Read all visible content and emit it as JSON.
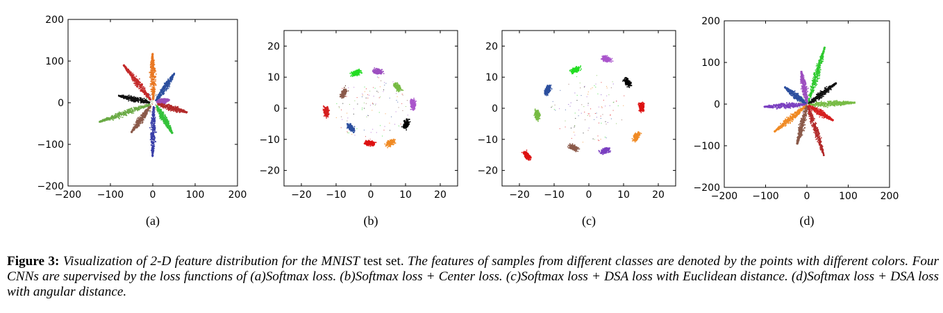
{
  "palette": [
    "#d62728",
    "#2ca02c",
    "#1f77b4",
    "#ff7f0e",
    "#9467bd",
    "#8c564b",
    "#e377c2",
    "#7f7f7f",
    "#bcbd22",
    "#000000",
    "#17becf"
  ],
  "chart_data": [
    {
      "type": "scatter",
      "panel_label": "(a)",
      "grid": false,
      "xlim": [
        -200,
        200
      ],
      "ylim": [
        -200,
        200
      ],
      "xticks": [
        "−200",
        "−100",
        "0",
        "100",
        "200"
      ],
      "yticks": [
        "200",
        "100",
        "0",
        "−100",
        "−200"
      ],
      "xtick_values": [
        -200,
        -100,
        0,
        100,
        200
      ],
      "ytick_values": [
        200,
        100,
        0,
        -100,
        -200
      ],
      "series": [
        {
          "color": "#e87722",
          "shape": "ray",
          "start": [
            0,
            8
          ],
          "end": [
            -2,
            120
          ]
        },
        {
          "color": "#2c4f9e",
          "shape": "ray",
          "start": [
            6,
            6
          ],
          "end": [
            50,
            72
          ]
        },
        {
          "color": "#9c4fb8",
          "shape": "ray",
          "start": [
            8,
            3
          ],
          "end": [
            38,
            8
          ]
        },
        {
          "color": "#b22a2a",
          "shape": "ray",
          "start": [
            10,
            -2
          ],
          "end": [
            80,
            -22
          ]
        },
        {
          "color": "#34c23a",
          "shape": "ray",
          "start": [
            8,
            -6
          ],
          "end": [
            45,
            -72
          ]
        },
        {
          "color": "#3a3fa8",
          "shape": "ray",
          "start": [
            1,
            -8
          ],
          "end": [
            -2,
            -128
          ]
        },
        {
          "color": "#8b5a4a",
          "shape": "ray",
          "start": [
            -6,
            -6
          ],
          "end": [
            -52,
            -70
          ]
        },
        {
          "color": "#6aaa45",
          "shape": "ray",
          "start": [
            -8,
            -3
          ],
          "end": [
            -128,
            -45
          ]
        },
        {
          "color": "#111111",
          "shape": "ray",
          "start": [
            -8,
            2
          ],
          "end": [
            -82,
            18
          ]
        },
        {
          "color": "#c42a2a",
          "shape": "ray",
          "start": [
            -5,
            7
          ],
          "end": [
            -70,
            92
          ]
        }
      ]
    },
    {
      "type": "scatter",
      "panel_label": "(b)",
      "grid": false,
      "xlim": [
        -25,
        25
      ],
      "ylim": [
        -25,
        25
      ],
      "xticks": [
        "−20",
        "−10",
        "0",
        "10",
        "20"
      ],
      "yticks": [
        "20",
        "10",
        "0",
        "−10",
        "−20"
      ],
      "xtick_values": [
        -20,
        -10,
        0,
        10,
        20
      ],
      "ytick_values": [
        20,
        10,
        0,
        -10,
        -20
      ],
      "series": [
        {
          "color": "#22dd22",
          "shape": "blob",
          "center": [
            -4.5,
            11.5
          ]
        },
        {
          "color": "#9d4fc0",
          "shape": "blob",
          "center": [
            2,
            12
          ]
        },
        {
          "color": "#8b5a4a",
          "shape": "blob",
          "center": [
            -8,
            5
          ]
        },
        {
          "color": "#77bb44",
          "shape": "blob",
          "center": [
            7.5,
            7
          ]
        },
        {
          "color": "#d62020",
          "shape": "blob",
          "center": [
            -13,
            -1
          ]
        },
        {
          "color": "#aa55cc",
          "shape": "blob",
          "center": [
            12,
            1.5
          ]
        },
        {
          "color": "#2c4f9e",
          "shape": "blob",
          "center": [
            -6,
            -6
          ]
        },
        {
          "color": "#000000",
          "shape": "blob",
          "center": [
            10,
            -5
          ]
        },
        {
          "color": "#dd1111",
          "shape": "blob",
          "center": [
            -0.5,
            -11
          ]
        },
        {
          "color": "#f08a24",
          "shape": "blob",
          "center": [
            5.5,
            -11
          ]
        }
      ]
    },
    {
      "type": "scatter",
      "panel_label": "(c)",
      "grid": false,
      "xlim": [
        -25,
        25
      ],
      "ylim": [
        -25,
        25
      ],
      "xticks": [
        "−20",
        "−10",
        "0",
        "10",
        "20"
      ],
      "yticks": [
        "20",
        "10",
        "0",
        "−10",
        "−20"
      ],
      "xtick_values": [
        -20,
        -10,
        0,
        10,
        20
      ],
      "ytick_values": [
        20,
        10,
        0,
        -10,
        -20
      ],
      "series": [
        {
          "color": "#22dd22",
          "shape": "blob",
          "center": [
            -4,
            12.5
          ]
        },
        {
          "color": "#aa55cc",
          "shape": "blob",
          "center": [
            5,
            16
          ]
        },
        {
          "color": "#000000",
          "shape": "blob",
          "center": [
            11,
            8.5
          ]
        },
        {
          "color": "#2c4f9e",
          "shape": "blob",
          "center": [
            -12,
            6
          ]
        },
        {
          "color": "#dd1111",
          "shape": "blob",
          "center": [
            15,
            0.5
          ]
        },
        {
          "color": "#77bb44",
          "shape": "blob",
          "center": [
            -15,
            -2
          ]
        },
        {
          "color": "#f08a24",
          "shape": "blob",
          "center": [
            13.5,
            -9
          ]
        },
        {
          "color": "#8b5a4a",
          "shape": "blob",
          "center": [
            -4.5,
            -12.5
          ]
        },
        {
          "color": "#7a3fc0",
          "shape": "blob",
          "center": [
            4.5,
            -13.5
          ]
        },
        {
          "color": "#dd1111",
          "shape": "blob",
          "center": [
            -18,
            -15
          ]
        }
      ]
    },
    {
      "type": "scatter",
      "panel_label": "(d)",
      "grid": false,
      "xlim": [
        -200,
        200
      ],
      "ylim": [
        -200,
        200
      ],
      "xticks": [
        "−200",
        "−100",
        "0",
        "100",
        "200"
      ],
      "yticks": [
        "200",
        "100",
        "0",
        "−100",
        "−200"
      ],
      "xtick_values": [
        -200,
        -100,
        0,
        100,
        200
      ],
      "ytick_values": [
        200,
        100,
        0,
        -100,
        -200
      ],
      "series": [
        {
          "color": "#2ec92e",
          "shape": "ray",
          "start": [
            2,
            4
          ],
          "end": [
            42,
            138
          ]
        },
        {
          "color": "#9d4fc0",
          "shape": "ray",
          "start": [
            -1,
            4
          ],
          "end": [
            -15,
            80
          ]
        },
        {
          "color": "#2c4f9e",
          "shape": "ray",
          "start": [
            -3,
            2
          ],
          "end": [
            -55,
            42
          ]
        },
        {
          "color": "#111111",
          "shape": "ray",
          "start": [
            3,
            2
          ],
          "end": [
            70,
            52
          ]
        },
        {
          "color": "#77bb44",
          "shape": "ray",
          "start": [
            3,
            0
          ],
          "end": [
            115,
            5
          ]
        },
        {
          "color": "#7a3fc0",
          "shape": "ray",
          "start": [
            -3,
            0
          ],
          "end": [
            -105,
            -5
          ]
        },
        {
          "color": "#f08a24",
          "shape": "ray",
          "start": [
            -2,
            -2
          ],
          "end": [
            -80,
            -65
          ]
        },
        {
          "color": "#8b5a4a",
          "shape": "ray",
          "start": [
            -1,
            -3
          ],
          "end": [
            -25,
            -95
          ]
        },
        {
          "color": "#b22a2a",
          "shape": "ray",
          "start": [
            1,
            -3
          ],
          "end": [
            40,
            -122
          ]
        },
        {
          "color": "#d62020",
          "shape": "ray",
          "start": [
            2,
            -2
          ],
          "end": [
            62,
            -38
          ]
        }
      ]
    }
  ],
  "caption": {
    "label": "Figure 3:",
    "text_1": " Visualization of 2-D feature distribution for the MNIST",
    "text_2": " test set.",
    "text_3": " The features of samples from different classes are denoted by the points with different colors. Four CNNs are supervised by the loss functions of (a)Softmax loss. (b)Softmax loss + Center loss. (c)Softmax loss + DSA loss with Euclidean distance. (d)Softmax loss + DSA loss with angular distance."
  }
}
